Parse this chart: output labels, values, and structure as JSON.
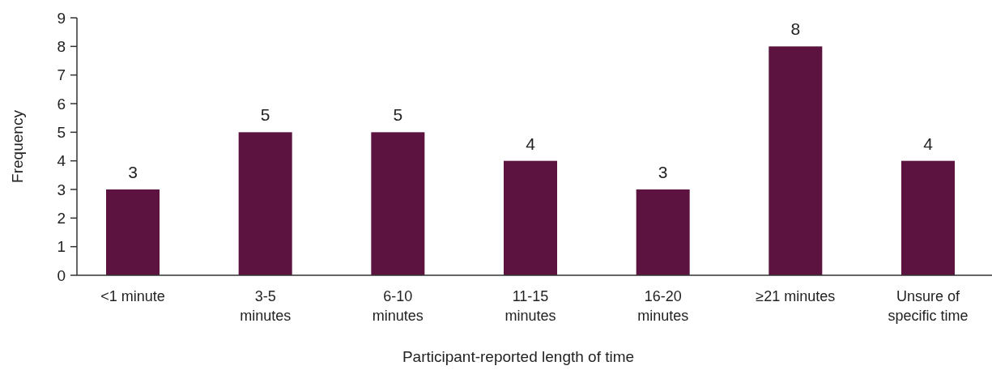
{
  "chart_data": {
    "type": "bar",
    "xlabel": "Participant-reported length of time",
    "ylabel": "Frequency",
    "categories": [
      "<1 minute",
      "3-5\nminutes",
      "6-10\nminutes",
      "11-15\nminutes",
      "16-20\nminutes",
      "≥21 minutes",
      "Unsure of\nspecific time"
    ],
    "values": [
      3,
      5,
      5,
      4,
      3,
      8,
      4
    ],
    "color": "#5c1340",
    "ylim": [
      0,
      9
    ],
    "yticks": [
      0,
      1,
      2,
      3,
      4,
      5,
      6,
      7,
      8,
      9
    ],
    "data_labels": true,
    "grid": false
  }
}
